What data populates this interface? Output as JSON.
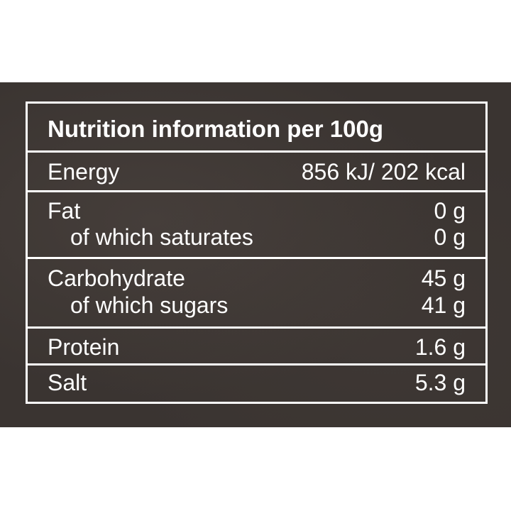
{
  "title": "Nutrition information per 100g",
  "colors": {
    "background": "#3a3431",
    "text": "#ffffff",
    "rules": "#ffffff"
  },
  "rows": [
    {
      "label": "Energy",
      "value": "856 kJ/ 202 kcal"
    },
    {
      "label": "Fat",
      "value": "0 g",
      "sub_label": "of which saturates",
      "sub_value": "0 g"
    },
    {
      "label": "Carbohydrate",
      "value": "45 g",
      "sub_label": "of which sugars",
      "sub_value": "41 g"
    },
    {
      "label": "Protein",
      "value": "1.6 g"
    },
    {
      "label": "Salt",
      "value": "5.3 g"
    }
  ]
}
